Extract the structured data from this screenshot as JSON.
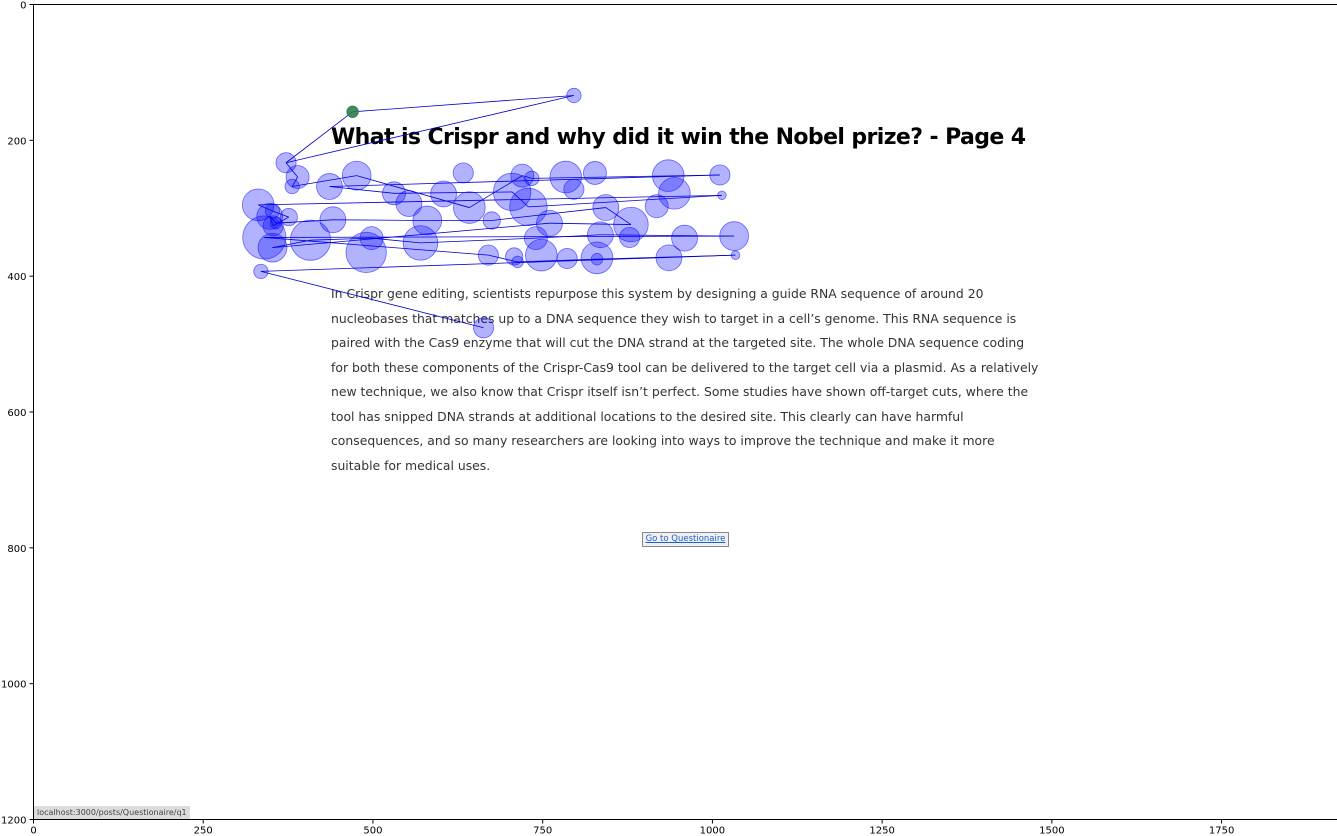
{
  "page": {
    "title": "What is Crispr and why did it win the Nobel prize? - Page 4",
    "body": "In Crispr gene editing, scientists repurpose this system by designing a guide RNA sequence of around 20 nucleobases that matches up to a DNA sequence they wish to target in a cell’s genome. This RNA sequence is paired with the Cas9 enzyme that will cut the DNA strand at the targeted site. The whole DNA sequence coding for both these components of the Crispr-Cas9 tool can be delivered to the target cell via a plasmid. As a relatively new technique, we also know that Crispr itself isn’t perfect. Some studies have shown off-target cuts, where the tool has snipped DNA strands at additional locations to the desired site. This clearly can have harmful consequences, and so many researchers are looking into ways to improve the technique and make it more suitable for medical uses.",
    "button_label": "Go to Questionaire",
    "status_url": "localhost:3000/posts/Questionaire/q1"
  },
  "chart_data": {
    "type": "scatter",
    "title": "",
    "xlabel": "",
    "ylabel": "",
    "xlim": [
      0,
      1920
    ],
    "ylim": [
      1200,
      0
    ],
    "xticks": [
      0,
      250,
      500,
      750,
      1000,
      1250,
      1500,
      1750
    ],
    "yticks": [
      0,
      200,
      400,
      600,
      800,
      1000,
      1200
    ],
    "grid": false,
    "colors": {
      "fixation": "#0000ff",
      "first_fixation": "#2e7d4f",
      "path": "#0000cc"
    },
    "points": [
      {
        "x": 470,
        "y": 158,
        "r": 8
      },
      {
        "x": 796,
        "y": 134,
        "r": 10
      },
      {
        "x": 372,
        "y": 233,
        "r": 14
      },
      {
        "x": 389,
        "y": 254,
        "r": 16
      },
      {
        "x": 381,
        "y": 268,
        "r": 10
      },
      {
        "x": 436,
        "y": 268,
        "r": 18
      },
      {
        "x": 476,
        "y": 252,
        "r": 20
      },
      {
        "x": 531,
        "y": 278,
        "r": 16
      },
      {
        "x": 553,
        "y": 293,
        "r": 18
      },
      {
        "x": 604,
        "y": 279,
        "r": 18
      },
      {
        "x": 633,
        "y": 248,
        "r": 14
      },
      {
        "x": 642,
        "y": 299,
        "r": 22
      },
      {
        "x": 675,
        "y": 318,
        "r": 12
      },
      {
        "x": 705,
        "y": 276,
        "r": 26
      },
      {
        "x": 720,
        "y": 252,
        "r": 16
      },
      {
        "x": 734,
        "y": 256,
        "r": 10
      },
      {
        "x": 729,
        "y": 298,
        "r": 26
      },
      {
        "x": 784,
        "y": 254,
        "r": 22
      },
      {
        "x": 796,
        "y": 272,
        "r": 14
      },
      {
        "x": 827,
        "y": 248,
        "r": 16
      },
      {
        "x": 843,
        "y": 299,
        "r": 18
      },
      {
        "x": 880,
        "y": 324,
        "r": 24
      },
      {
        "x": 918,
        "y": 297,
        "r": 16
      },
      {
        "x": 935,
        "y": 252,
        "r": 22
      },
      {
        "x": 944,
        "y": 278,
        "r": 22
      },
      {
        "x": 1011,
        "y": 251,
        "r": 14
      },
      {
        "x": 1014,
        "y": 281,
        "r": 6
      },
      {
        "x": 331,
        "y": 295,
        "r": 22
      },
      {
        "x": 348,
        "y": 312,
        "r": 18
      },
      {
        "x": 352,
        "y": 304,
        "r": 10
      },
      {
        "x": 353,
        "y": 326,
        "r": 14
      },
      {
        "x": 357,
        "y": 322,
        "r": 8
      },
      {
        "x": 376,
        "y": 313,
        "r": 12
      },
      {
        "x": 441,
        "y": 317,
        "r": 18
      },
      {
        "x": 580,
        "y": 318,
        "r": 20
      },
      {
        "x": 760,
        "y": 322,
        "r": 18
      },
      {
        "x": 340,
        "y": 343,
        "r": 30
      },
      {
        "x": 352,
        "y": 358,
        "r": 20
      },
      {
        "x": 408,
        "y": 347,
        "r": 28
      },
      {
        "x": 498,
        "y": 344,
        "r": 16
      },
      {
        "x": 490,
        "y": 365,
        "r": 28
      },
      {
        "x": 570,
        "y": 351,
        "r": 24
      },
      {
        "x": 740,
        "y": 344,
        "r": 16
      },
      {
        "x": 835,
        "y": 339,
        "r": 18
      },
      {
        "x": 878,
        "y": 343,
        "r": 14
      },
      {
        "x": 959,
        "y": 344,
        "r": 18
      },
      {
        "x": 1032,
        "y": 341,
        "r": 20
      },
      {
        "x": 670,
        "y": 369,
        "r": 14
      },
      {
        "x": 708,
        "y": 371,
        "r": 12
      },
      {
        "x": 713,
        "y": 379,
        "r": 8
      },
      {
        "x": 748,
        "y": 369,
        "r": 22
      },
      {
        "x": 786,
        "y": 374,
        "r": 14
      },
      {
        "x": 830,
        "y": 373,
        "r": 22
      },
      {
        "x": 830,
        "y": 375,
        "r": 8
      },
      {
        "x": 936,
        "y": 373,
        "r": 18
      },
      {
        "x": 1034,
        "y": 369,
        "r": 6
      },
      {
        "x": 335,
        "y": 393,
        "r": 10
      },
      {
        "x": 663,
        "y": 476,
        "r": 14
      }
    ],
    "path_order": [
      2,
      0,
      1,
      2,
      3,
      4,
      6,
      11,
      14,
      15,
      25,
      5,
      7,
      13,
      16,
      26,
      27,
      29,
      32,
      30,
      28,
      31,
      33,
      34,
      12,
      20,
      21,
      35,
      37,
      38,
      39,
      41,
      42,
      43,
      46,
      36,
      47,
      49,
      53,
      55,
      56,
      57
    ]
  }
}
